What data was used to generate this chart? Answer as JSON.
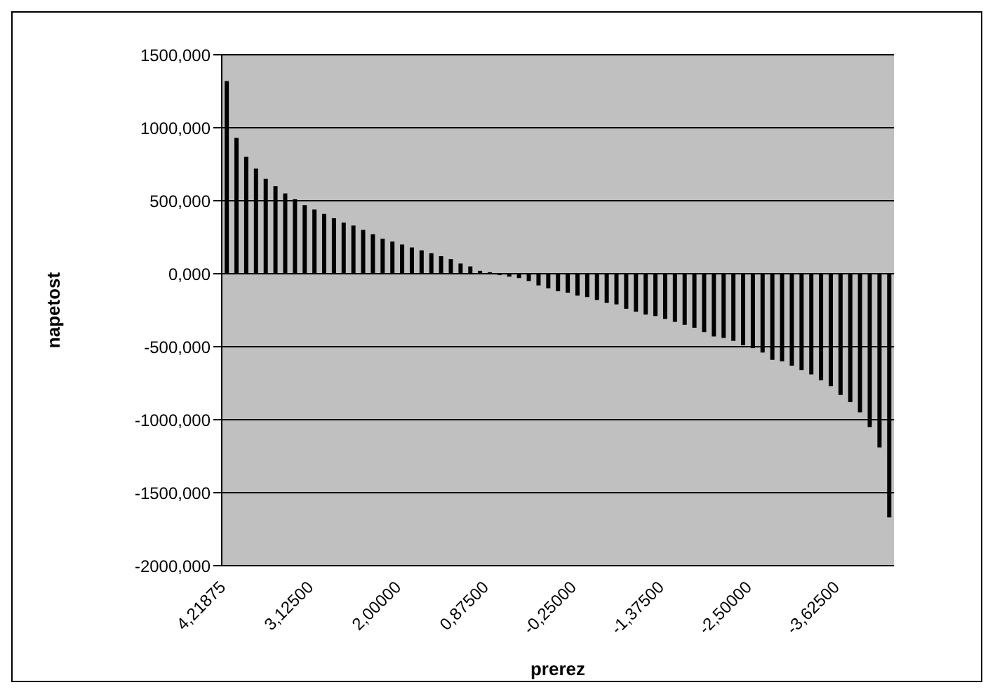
{
  "chart_data": {
    "type": "bar",
    "xlabel": "prerez",
    "ylabel": "napetost",
    "categories": [
      "4,21875",
      null,
      null,
      null,
      null,
      null,
      null,
      null,
      null,
      "3,12500",
      null,
      null,
      null,
      null,
      null,
      null,
      null,
      null,
      "2,00000",
      null,
      null,
      null,
      null,
      null,
      null,
      null,
      null,
      "0,87500",
      null,
      null,
      null,
      null,
      null,
      null,
      null,
      null,
      "-0,25000",
      null,
      null,
      null,
      null,
      null,
      null,
      null,
      null,
      "-1,37500",
      null,
      null,
      null,
      null,
      null,
      null,
      null,
      null,
      "-2,50000",
      null,
      null,
      null,
      null,
      null,
      null,
      null,
      null,
      "-3,62500",
      null,
      null,
      null,
      null,
      null
    ],
    "values": [
      1320,
      930,
      800,
      720,
      650,
      600,
      550,
      510,
      470,
      440,
      410,
      380,
      350,
      330,
      300,
      270,
      240,
      220,
      200,
      180,
      160,
      140,
      120,
      100,
      70,
      50,
      20,
      10,
      -10,
      -20,
      -30,
      -50,
      -80,
      -100,
      -120,
      -130,
      -150,
      -160,
      -180,
      -200,
      -210,
      -240,
      -260,
      -280,
      -290,
      -310,
      -330,
      -350,
      -370,
      -400,
      -430,
      -440,
      -460,
      -490,
      -510,
      -540,
      -590,
      -600,
      -630,
      -660,
      -690,
      -730,
      -770,
      -830,
      -880,
      -950,
      -1050,
      -1190,
      -1670
    ],
    "color": "#000000",
    "ylim": [
      -2000,
      1500
    ],
    "yticks": [
      {
        "value": -2000,
        "label": "-2000,000"
      },
      {
        "value": -1500,
        "label": "-1500,000"
      },
      {
        "value": -1000,
        "label": "-1000,000"
      },
      {
        "value": -500,
        "label": "-500,000"
      },
      {
        "value": 0,
        "label": "0,000"
      },
      {
        "value": 500,
        "label": "500,000"
      },
      {
        "value": 1000,
        "label": "1000,000"
      },
      {
        "value": 1500,
        "label": "1500,000"
      }
    ],
    "grid": "y"
  }
}
